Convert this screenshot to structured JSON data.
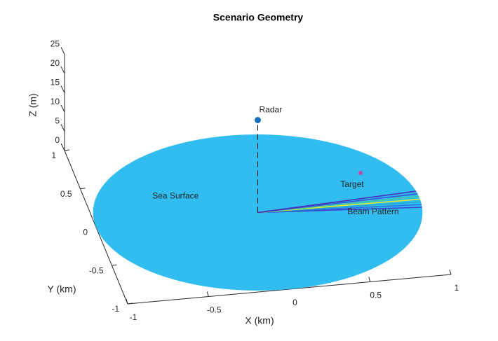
{
  "chart_data": {
    "type": "scene3d",
    "title": "Scenario Geometry",
    "xlabel": "X (km)",
    "ylabel": "Y (km)",
    "zlabel": "Z (m)",
    "xlim": [
      -1,
      1
    ],
    "xticks": [
      -1,
      -0.5,
      0,
      0.5,
      1
    ],
    "ylim": [
      -1,
      1
    ],
    "yticks": [
      -1,
      -0.5,
      0,
      0.5,
      1
    ],
    "zlim": [
      0,
      25
    ],
    "zticks": [
      0,
      5,
      10,
      15,
      20,
      25
    ],
    "surface": {
      "name": "Sea Surface",
      "radius": 1,
      "color": "#31bdf0"
    },
    "radar": {
      "name": "Radar",
      "x": 0,
      "y": 0,
      "z": 24,
      "color": "#1a6fbf"
    },
    "target": {
      "name": "Target",
      "x": 0.71,
      "y": 0.38,
      "z": 0,
      "color": "#e0309a"
    },
    "beam": {
      "name": "Beam Pattern",
      "radius": 1,
      "azimuths": [
        -7,
        -5,
        -3,
        -1,
        1,
        3,
        5
      ],
      "colors": [
        "#3b3fd0",
        "#2c6ee0",
        "#22a7d8",
        "#e6e62a",
        "#3fc9a0",
        "#3456d8",
        "#4a2fb8"
      ]
    }
  }
}
